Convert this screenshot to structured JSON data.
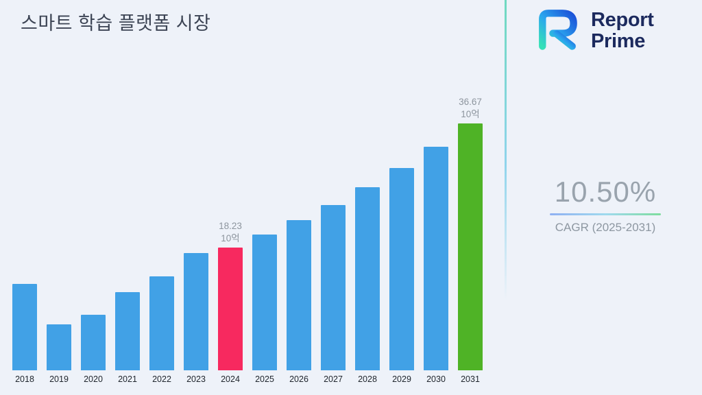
{
  "page": {
    "background": "#eef2f9"
  },
  "header": {
    "title": "스마트 학습 플랫폼 시장"
  },
  "brand": {
    "line1": "Report",
    "line2": "Prime",
    "text_color": "#1c2a5e"
  },
  "stats": {
    "cagr_value": "10.50%",
    "cagr_label": "CAGR (2025-2031)"
  },
  "chart_data": {
    "type": "bar",
    "title": "스마트 학습 플랫폼 시장",
    "categories": [
      "2018",
      "2019",
      "2020",
      "2021",
      "2022",
      "2023",
      "2024",
      "2025",
      "2026",
      "2027",
      "2028",
      "2029",
      "2030",
      "2031"
    ],
    "values": [
      12.8,
      6.8,
      8.3,
      11.6,
      14.0,
      17.4,
      18.23,
      20.14,
      22.26,
      24.59,
      27.18,
      30.03,
      33.19,
      36.67
    ],
    "unit_label": "10억",
    "ylim": [
      0,
      38
    ],
    "grid": false,
    "legend": false,
    "xlabel": "",
    "ylabel": "",
    "bar_color": "#41a1e6",
    "highlight_colors": {
      "2024": "#f7295f",
      "2031": "#4fb326"
    },
    "annotations": [
      {
        "category": "2024",
        "lines": [
          "18.23",
          "10억"
        ]
      },
      {
        "category": "2031",
        "lines": [
          "36.67",
          "10억"
        ]
      }
    ]
  }
}
